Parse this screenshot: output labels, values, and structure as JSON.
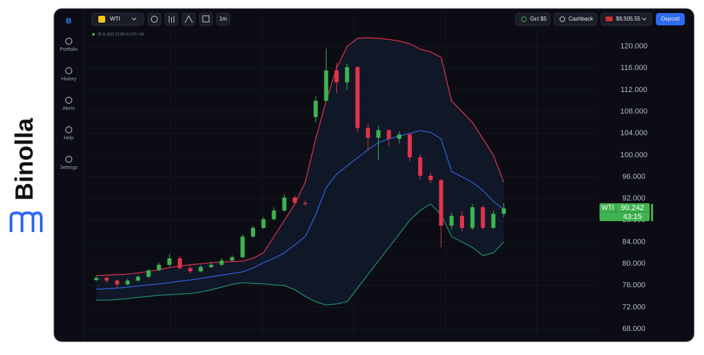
{
  "brand": "Binolla",
  "sidebar": [
    "Portfolio",
    "History",
    "Alerts",
    "Help",
    "Settings"
  ],
  "toolbar": {
    "asset": "WTI",
    "timeframe": "1m",
    "bonus": "Get $5",
    "cashback": "Cashback",
    "balance": "$9,505.55",
    "deposit": "Deposit"
  },
  "timestamp": "25.11.2021  21:04:31  UTC +10",
  "price_tag": {
    "asset": "WTI",
    "price": "90.242",
    "timer": "43:15"
  },
  "chart_data": {
    "type": "candlestick",
    "open": [
      77.0,
      77.4,
      76.9,
      76.2,
      76.9,
      77.6,
      78.8,
      79.8,
      81.0,
      79.2,
      78.6,
      79.4,
      79.8,
      80.6,
      81.2,
      85.0,
      86.6,
      88.2,
      89.8,
      92.2,
      91.2,
      107.0,
      110.0,
      115.6,
      113.4,
      116.2,
      105.0,
      103.2,
      104.6,
      103.0,
      103.8,
      99.6,
      96.2,
      95.4,
      87.0,
      88.8,
      86.6,
      90.4,
      86.6,
      89.2
    ],
    "high": [
      77.8,
      77.6,
      77.1,
      77.2,
      77.9,
      79.0,
      80.2,
      81.8,
      81.4,
      79.6,
      79.8,
      80.2,
      81.0,
      81.6,
      85.4,
      87.0,
      88.6,
      90.4,
      92.8,
      92.6,
      91.6,
      110.8,
      119.6,
      117.0,
      116.8,
      116.4,
      105.8,
      105.4,
      104.8,
      104.4,
      104.0,
      100.2,
      96.8,
      95.6,
      89.4,
      89.6,
      91.0,
      90.8,
      89.8,
      91.2
    ],
    "low": [
      76.8,
      76.5,
      75.6,
      76.0,
      76.7,
      77.4,
      78.6,
      79.5,
      78.9,
      78.2,
      78.4,
      79.2,
      79.6,
      80.4,
      81.0,
      84.8,
      86.4,
      88.0,
      89.6,
      90.8,
      90.6,
      106.0,
      109.8,
      111.4,
      112.0,
      104.2,
      100.8,
      99.0,
      101.6,
      102.2,
      98.8,
      95.4,
      94.8,
      83.0,
      86.2,
      86.0,
      86.2,
      86.2,
      86.4,
      88.6
    ],
    "close": [
      77.4,
      76.9,
      76.2,
      76.9,
      77.6,
      78.8,
      79.8,
      81.0,
      79.2,
      78.6,
      79.4,
      79.8,
      80.6,
      81.2,
      85.0,
      86.6,
      88.2,
      89.8,
      92.2,
      91.2,
      91.0,
      110.0,
      115.6,
      113.4,
      116.2,
      105.0,
      103.2,
      104.6,
      103.0,
      103.8,
      99.6,
      96.2,
      95.4,
      87.0,
      88.8,
      86.6,
      90.4,
      86.6,
      89.2,
      90.2
    ],
    "up_color": "#3fb34f",
    "down_color": "#e0344b",
    "bands": [
      {
        "color": "#d9334b",
        "values": [
          77.8,
          77.9,
          78.0,
          78.1,
          78.3,
          78.6,
          78.9,
          79.3,
          79.6,
          79.8,
          80.0,
          80.2,
          80.3,
          80.4,
          80.5,
          81.0,
          82.0,
          85.0,
          88.0,
          91.0,
          95.0,
          103.0,
          110.0,
          116.0,
          120.0,
          121.5,
          121.6,
          121.5,
          121.3,
          121.0,
          120.5,
          119.5,
          119.0,
          118.0,
          110.0,
          108.0,
          106.0,
          103.0,
          100.0,
          95.0
        ]
      },
      {
        "color": "#2f5fd6",
        "values": [
          75.3,
          75.4,
          75.5,
          75.7,
          75.9,
          76.1,
          76.3,
          76.5,
          76.8,
          77.0,
          77.3,
          77.6,
          77.9,
          78.2,
          78.5,
          79.2,
          80.2,
          81.0,
          82.0,
          83.5,
          85.0,
          89.0,
          94.0,
          96.5,
          98.0,
          99.5,
          101.0,
          102.3,
          103.0,
          103.5,
          104.0,
          104.5,
          104.2,
          103.0,
          97.0,
          96.0,
          95.0,
          93.5,
          91.5,
          90.0
        ]
      },
      {
        "color": "#1f8a6e",
        "values": [
          73.3,
          73.3,
          73.4,
          73.6,
          73.8,
          74.0,
          74.2,
          74.3,
          74.4,
          74.5,
          74.8,
          75.2,
          75.7,
          76.2,
          76.5,
          76.4,
          76.3,
          76.1,
          76.0,
          75.2,
          74.0,
          73.0,
          72.4,
          72.6,
          73.0,
          75.5,
          78.0,
          80.5,
          83.0,
          85.5,
          88.0,
          89.8,
          91.0,
          89.0,
          85.0,
          84.0,
          83.0,
          81.5,
          82.0,
          84.0
        ]
      }
    ],
    "ylim": [
      65.6,
      123.5
    ],
    "yticks": [
      {
        "value": 120,
        "label": "120.000"
      },
      {
        "value": 116,
        "label": "116.000"
      },
      {
        "value": 112,
        "label": "112.000"
      },
      {
        "value": 108,
        "label": "108.000"
      },
      {
        "value": 104,
        "label": "104.000"
      },
      {
        "value": 100,
        "label": "100.000"
      },
      {
        "value": 96,
        "label": "96.000"
      },
      {
        "value": 92,
        "label": "92.000"
      },
      {
        "value": 88,
        "label": "88.000"
      },
      {
        "value": 84,
        "label": "84.000"
      },
      {
        "value": 80,
        "label": "80.000"
      },
      {
        "value": 76,
        "label": "76.000"
      },
      {
        "value": 72,
        "label": "72.000"
      },
      {
        "value": 68,
        "label": "68.000"
      }
    ]
  }
}
